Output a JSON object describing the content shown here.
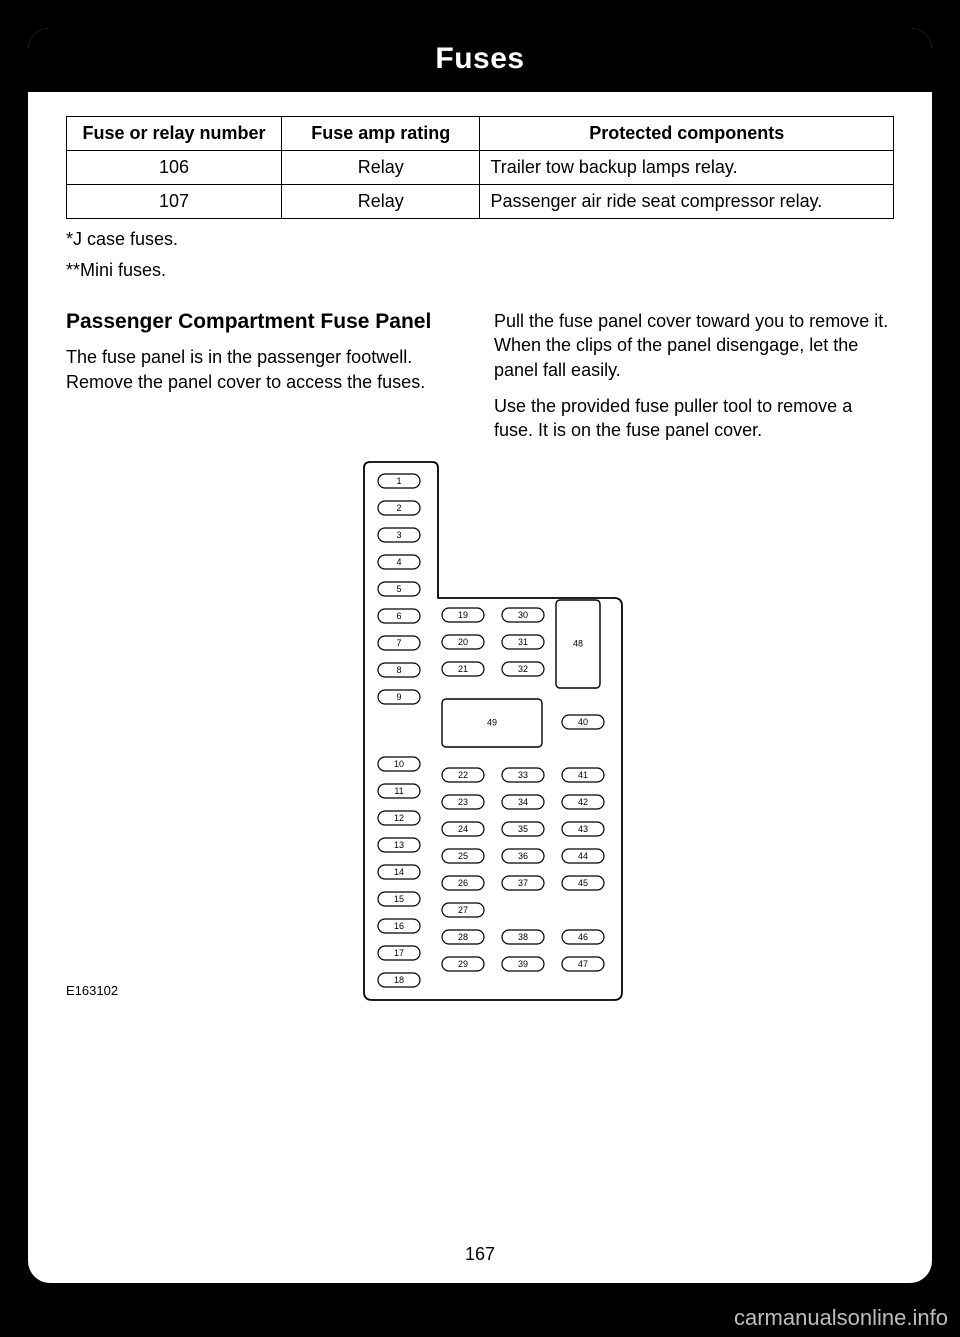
{
  "title": "Fuses",
  "table": {
    "headers": [
      "Fuse or relay number",
      "Fuse amp rating",
      "Protected components"
    ],
    "rows": [
      [
        "106",
        "Relay",
        "Trailer tow backup lamps relay."
      ],
      [
        "107",
        "Relay",
        "Passenger air ride seat compressor relay."
      ]
    ]
  },
  "notes": [
    "*J case fuses.",
    "**Mini fuses."
  ],
  "section_heading": "Passenger Compartment Fuse Panel",
  "para_left": "The fuse panel is in the passenger footwell. Remove the panel cover to access the fuses.",
  "para_right_1": "Pull the fuse panel cover toward you to remove it. When the clips of the panel disengage, let the panel fall easily.",
  "para_right_2": "Use the provided fuse puller tool to remove a fuse. It is on the fuse panel cover.",
  "diagram_label": "E163102",
  "page_number": "167",
  "watermark": "carmanualsonline.info",
  "diagram": {
    "col1_a": [
      1,
      2,
      3,
      4,
      5,
      6,
      7,
      8,
      9
    ],
    "col1_b": [
      10,
      11,
      12,
      13,
      14,
      15,
      16,
      17,
      18
    ],
    "col2_a": [
      19,
      20,
      21
    ],
    "col2_b": [
      22,
      23,
      24,
      25,
      26,
      27,
      28,
      29
    ],
    "col3_a": [
      30,
      31,
      32
    ],
    "col3_b": [
      33,
      34,
      35,
      36,
      37,
      38,
      39
    ],
    "col4_b": [
      41,
      42,
      43,
      44,
      45,
      46,
      47
    ],
    "slot40": 40,
    "box48": 48,
    "box49": 49,
    "skip_col3_b_after": 37,
    "skip_col4_b_after": 45
  }
}
